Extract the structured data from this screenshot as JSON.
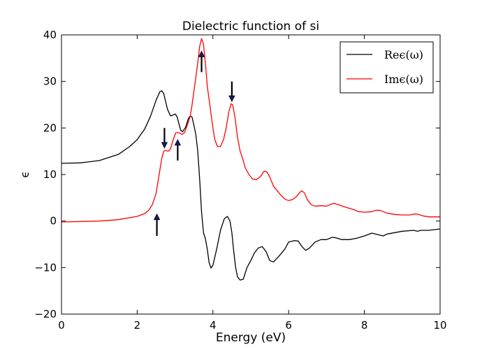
{
  "chart_data": {
    "type": "line",
    "title": "Dielectric function of si",
    "xlabel": "Energy (eV)",
    "ylabel": "ϵ",
    "xlim": [
      0,
      10
    ],
    "ylim": [
      -20,
      40
    ],
    "xticks": [
      0,
      2,
      4,
      6,
      8,
      10
    ],
    "yticks": [
      -20,
      -10,
      0,
      10,
      20,
      30,
      40
    ],
    "grid": false,
    "legend_position": "top-right",
    "series": [
      {
        "name": "Reϵ(ω)",
        "color": "#000000",
        "points": [
          [
            0.0,
            12.4
          ],
          [
            0.5,
            12.5
          ],
          [
            1.0,
            13.0
          ],
          [
            1.5,
            14.3
          ],
          [
            1.8,
            16.0
          ],
          [
            2.0,
            17.5
          ],
          [
            2.2,
            19.8
          ],
          [
            2.35,
            22.5
          ],
          [
            2.5,
            26.0
          ],
          [
            2.6,
            27.8
          ],
          [
            2.65,
            28.0
          ],
          [
            2.7,
            27.4
          ],
          [
            2.8,
            24.0
          ],
          [
            2.88,
            22.6
          ],
          [
            2.95,
            22.8
          ],
          [
            3.0,
            23.0
          ],
          [
            3.05,
            22.5
          ],
          [
            3.1,
            21.0
          ],
          [
            3.15,
            19.5
          ],
          [
            3.2,
            19.2
          ],
          [
            3.28,
            20.2
          ],
          [
            3.35,
            22.0
          ],
          [
            3.4,
            22.6
          ],
          [
            3.45,
            22.3
          ],
          [
            3.5,
            20.5
          ],
          [
            3.55,
            18.5
          ],
          [
            3.6,
            15.0
          ],
          [
            3.65,
            9.0
          ],
          [
            3.7,
            2.0
          ],
          [
            3.75,
            -2.5
          ],
          [
            3.8,
            -3.8
          ],
          [
            3.85,
            -6.0
          ],
          [
            3.9,
            -9.0
          ],
          [
            3.95,
            -10.1
          ],
          [
            4.0,
            -9.5
          ],
          [
            4.1,
            -6.0
          ],
          [
            4.2,
            -2.0
          ],
          [
            4.3,
            0.5
          ],
          [
            4.38,
            1.0
          ],
          [
            4.45,
            0.0
          ],
          [
            4.5,
            -2.5
          ],
          [
            4.55,
            -6.5
          ],
          [
            4.6,
            -10.0
          ],
          [
            4.65,
            -12.0
          ],
          [
            4.72,
            -12.7
          ],
          [
            4.8,
            -12.5
          ],
          [
            4.9,
            -10.0
          ],
          [
            5.0,
            -8.5
          ],
          [
            5.1,
            -6.8
          ],
          [
            5.2,
            -5.8
          ],
          [
            5.3,
            -5.5
          ],
          [
            5.4,
            -6.5
          ],
          [
            5.5,
            -8.5
          ],
          [
            5.6,
            -8.8
          ],
          [
            5.75,
            -7.5
          ],
          [
            5.9,
            -6.0
          ],
          [
            6.0,
            -4.5
          ],
          [
            6.15,
            -4.2
          ],
          [
            6.25,
            -4.3
          ],
          [
            6.35,
            -5.5
          ],
          [
            6.45,
            -6.3
          ],
          [
            6.55,
            -5.8
          ],
          [
            6.7,
            -4.5
          ],
          [
            6.85,
            -4.0
          ],
          [
            7.0,
            -4.0
          ],
          [
            7.15,
            -3.5
          ],
          [
            7.25,
            -3.6
          ],
          [
            7.4,
            -4.0
          ],
          [
            7.6,
            -4.0
          ],
          [
            7.8,
            -3.7
          ],
          [
            8.0,
            -3.2
          ],
          [
            8.2,
            -2.6
          ],
          [
            8.4,
            -3.0
          ],
          [
            8.5,
            -3.2
          ],
          [
            8.6,
            -2.8
          ],
          [
            9.0,
            -2.2
          ],
          [
            9.3,
            -2.0
          ],
          [
            9.4,
            -2.2
          ],
          [
            9.5,
            -2.0
          ],
          [
            9.7,
            -2.0
          ],
          [
            10.0,
            -1.7
          ]
        ]
      },
      {
        "name": "Imϵ(ω)",
        "color": "#ff0000",
        "points": [
          [
            0.0,
            -0.2
          ],
          [
            1.0,
            0.0
          ],
          [
            1.5,
            0.3
          ],
          [
            2.0,
            1.0
          ],
          [
            2.2,
            1.6
          ],
          [
            2.3,
            2.3
          ],
          [
            2.4,
            3.5
          ],
          [
            2.5,
            6.0
          ],
          [
            2.55,
            8.5
          ],
          [
            2.6,
            11.0
          ],
          [
            2.65,
            13.5
          ],
          [
            2.7,
            15.0
          ],
          [
            2.75,
            15.2
          ],
          [
            2.82,
            15.0
          ],
          [
            2.88,
            15.5
          ],
          [
            2.95,
            17.5
          ],
          [
            3.02,
            19.0
          ],
          [
            3.1,
            19.0
          ],
          [
            3.18,
            18.6
          ],
          [
            3.25,
            19.0
          ],
          [
            3.32,
            20.5
          ],
          [
            3.4,
            22.5
          ],
          [
            3.45,
            25.0
          ],
          [
            3.5,
            28.0
          ],
          [
            3.55,
            31.0
          ],
          [
            3.6,
            34.0
          ],
          [
            3.65,
            37.5
          ],
          [
            3.7,
            39.2
          ],
          [
            3.75,
            38.0
          ],
          [
            3.8,
            34.0
          ],
          [
            3.85,
            29.0
          ],
          [
            3.9,
            26.0
          ],
          [
            3.95,
            23.0
          ],
          [
            4.0,
            20.0
          ],
          [
            4.05,
            17.5
          ],
          [
            4.12,
            16.0
          ],
          [
            4.2,
            16.0
          ],
          [
            4.28,
            17.5
          ],
          [
            4.35,
            20.0
          ],
          [
            4.42,
            23.5
          ],
          [
            4.48,
            25.2
          ],
          [
            4.52,
            25.0
          ],
          [
            4.58,
            22.5
          ],
          [
            4.65,
            18.0
          ],
          [
            4.72,
            15.0
          ],
          [
            4.8,
            13.0
          ],
          [
            4.85,
            11.5
          ],
          [
            4.95,
            10.0
          ],
          [
            5.05,
            9.0
          ],
          [
            5.15,
            8.9
          ],
          [
            5.25,
            9.5
          ],
          [
            5.35,
            10.7
          ],
          [
            5.42,
            10.6
          ],
          [
            5.5,
            9.5
          ],
          [
            5.6,
            7.5
          ],
          [
            5.7,
            6.5
          ],
          [
            5.8,
            5.5
          ],
          [
            5.9,
            4.7
          ],
          [
            6.0,
            4.4
          ],
          [
            6.1,
            4.6
          ],
          [
            6.2,
            5.2
          ],
          [
            6.3,
            6.2
          ],
          [
            6.35,
            6.5
          ],
          [
            6.42,
            6.0
          ],
          [
            6.5,
            4.5
          ],
          [
            6.6,
            3.5
          ],
          [
            6.7,
            3.2
          ],
          [
            6.85,
            3.3
          ],
          [
            7.0,
            3.2
          ],
          [
            7.15,
            3.7
          ],
          [
            7.2,
            3.8
          ],
          [
            7.35,
            3.4
          ],
          [
            7.5,
            3.0
          ],
          [
            7.7,
            2.5
          ],
          [
            7.85,
            2.0
          ],
          [
            8.0,
            1.9
          ],
          [
            8.2,
            2.0
          ],
          [
            8.3,
            2.3
          ],
          [
            8.4,
            2.3
          ],
          [
            8.6,
            1.7
          ],
          [
            8.8,
            1.4
          ],
          [
            9.0,
            1.3
          ],
          [
            9.2,
            1.3
          ],
          [
            9.3,
            1.5
          ],
          [
            9.4,
            1.5
          ],
          [
            9.55,
            1.1
          ],
          [
            9.7,
            0.9
          ],
          [
            10.0,
            0.9
          ]
        ]
      }
    ],
    "annotations": [
      {
        "type": "arrow",
        "direction": "up",
        "x": 2.52,
        "y_from": -3.2,
        "y_to": 1.5
      },
      {
        "type": "arrow",
        "direction": "down",
        "x": 2.72,
        "y_from": 20.0,
        "y_to": 15.7
      },
      {
        "type": "arrow",
        "direction": "up",
        "x": 3.07,
        "y_from": 13.0,
        "y_to": 17.5
      },
      {
        "type": "arrow",
        "direction": "up",
        "x": 3.7,
        "y_from": 32.0,
        "y_to": 36.5
      },
      {
        "type": "arrow",
        "direction": "down",
        "x": 4.5,
        "y_from": 30.0,
        "y_to": 25.7
      }
    ]
  }
}
